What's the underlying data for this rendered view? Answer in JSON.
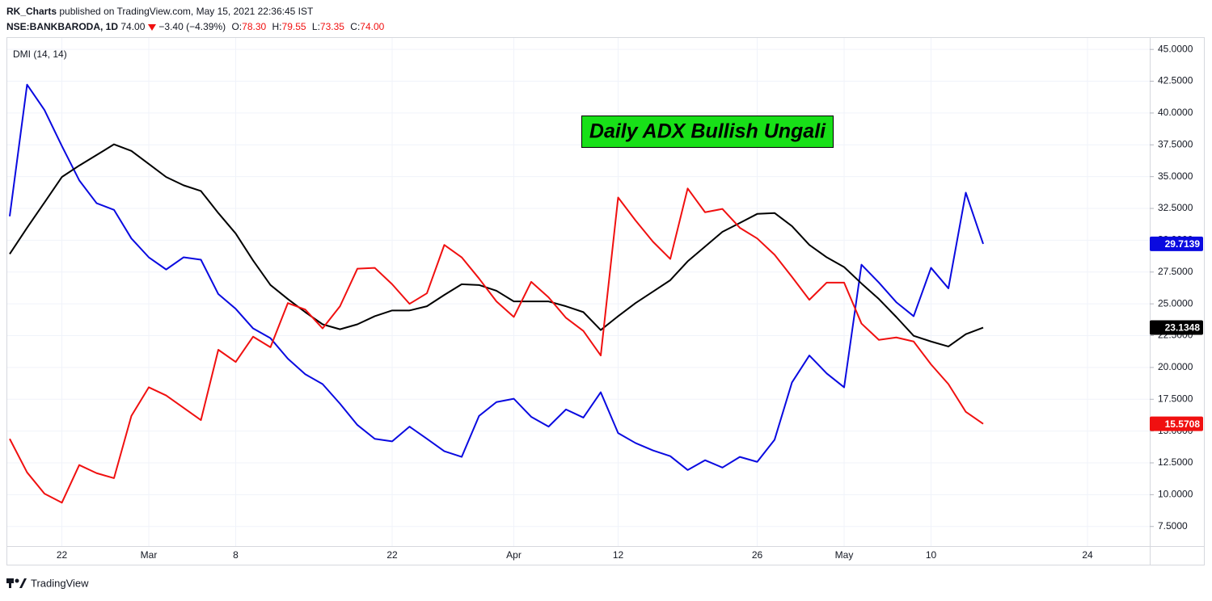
{
  "header": {
    "author": "RK_Charts",
    "published": "published on TradingView.com, May 15, 2021 22:36:45 IST",
    "symbol": "NSE:BANKBARODA, 1D",
    "last": "74.00",
    "change": "−3.40 (−4.39%)",
    "ohlc": [
      {
        "label": "O:",
        "value": "78.30"
      },
      {
        "label": "H:",
        "value": "79.55"
      },
      {
        "label": "L:",
        "value": "73.35"
      },
      {
        "label": "C:",
        "value": "74.00"
      }
    ]
  },
  "footer": {
    "brand": "TradingView"
  },
  "chart_data": {
    "type": "line",
    "legend": "DMI (14, 14)",
    "annotation": "Daily ADX Bullish Ungali",
    "grid": true,
    "categories": [
      null,
      null,
      null,
      "22",
      null,
      null,
      null,
      null,
      "Mar",
      null,
      null,
      null,
      null,
      "8",
      null,
      null,
      null,
      null,
      null,
      null,
      null,
      null,
      "22",
      null,
      null,
      null,
      null,
      null,
      null,
      "Apr",
      null,
      null,
      null,
      null,
      null,
      "12",
      null,
      null,
      null,
      null,
      null,
      null,
      null,
      "26",
      null,
      null,
      null,
      null,
      "May",
      null,
      null,
      null,
      null,
      "10",
      null,
      null,
      null,
      null,
      null,
      null,
      null,
      null,
      "24",
      null,
      null,
      null
    ],
    "ylim": [
      5.96,
      45.9
    ],
    "yticks": [
      {
        "value": 7.5,
        "label": "7.5000"
      },
      {
        "value": 10,
        "label": "10.0000"
      },
      {
        "value": 12.5,
        "label": "12.5000"
      },
      {
        "value": 15,
        "label": "15.0000"
      },
      {
        "value": 17.5,
        "label": "17.5000"
      },
      {
        "value": 20,
        "label": "20.0000"
      },
      {
        "value": 22.5,
        "label": "22.5000"
      },
      {
        "value": 25,
        "label": "25.0000"
      },
      {
        "value": 27.5,
        "label": "27.5000"
      },
      {
        "value": 30,
        "label": "30.0000"
      },
      {
        "value": 32.5,
        "label": "32.5000"
      },
      {
        "value": 35,
        "label": "35.0000"
      },
      {
        "value": 37.5,
        "label": "37.5000"
      },
      {
        "value": 40,
        "label": "40.0000"
      },
      {
        "value": 42.5,
        "label": "42.5000"
      },
      {
        "value": 45,
        "label": "45.0000"
      }
    ],
    "series": [
      {
        "color": "#0a0ae0",
        "values": [
          31.88,
          42.23,
          40.24,
          37.41,
          34.71,
          32.91,
          32.39,
          30.14,
          28.66,
          27.7,
          28.66,
          28.47,
          25.77,
          24.61,
          23.07,
          22.3,
          20.69,
          19.47,
          18.69,
          17.15,
          15.48,
          14.39,
          14.19,
          15.35,
          14.39,
          13.42,
          12.97,
          16.19,
          17.28,
          17.54,
          16.12,
          15.35,
          16.7,
          16.06,
          18.05,
          14.84,
          14.06,
          13.48,
          13.03,
          11.94,
          12.71,
          12.13,
          12.97,
          12.58,
          14.32,
          18.82,
          20.94,
          19.53,
          18.44,
          28.08,
          26.67,
          25.13,
          24.03,
          27.83,
          26.22,
          33.74,
          29.7139,
          null,
          null,
          null,
          null,
          null,
          null,
          null,
          null,
          null
        ]
      },
      {
        "color": "#000000",
        "values": [
          28.92,
          30.98,
          32.97,
          34.97,
          35.87,
          36.7,
          37.54,
          37.02,
          36.0,
          34.97,
          34.32,
          33.87,
          32.14,
          30.53,
          28.41,
          26.48,
          25.38,
          24.35,
          23.39,
          23.0,
          23.39,
          24.03,
          24.48,
          24.48,
          24.81,
          25.7,
          26.54,
          26.48,
          26.03,
          25.19,
          25.19,
          25.19,
          24.81,
          24.35,
          22.94,
          24.03,
          25.06,
          25.96,
          26.86,
          28.34,
          29.5,
          30.66,
          31.36,
          32.07,
          32.14,
          31.11,
          29.63,
          28.66,
          27.89,
          26.6,
          25.38,
          23.97,
          22.49,
          22.04,
          21.65,
          22.62,
          23.1348,
          null,
          null,
          null,
          null,
          null,
          null,
          null,
          null,
          null
        ]
      },
      {
        "color": "#f01010",
        "values": [
          14.39,
          11.75,
          10.08,
          9.37,
          12.33,
          11.69,
          11.3,
          16.19,
          18.44,
          17.8,
          16.83,
          15.86,
          21.39,
          20.43,
          22.42,
          21.59,
          25.06,
          24.55,
          23.07,
          24.81,
          27.76,
          27.83,
          26.54,
          25.0,
          25.83,
          29.63,
          28.66,
          26.99,
          25.19,
          23.97,
          26.73,
          25.51,
          23.9,
          22.87,
          20.94,
          33.36,
          31.56,
          29.89,
          28.53,
          34.07,
          32.2,
          32.46,
          30.98,
          30.14,
          28.86,
          27.12,
          25.32,
          26.67,
          26.67,
          23.45,
          22.17,
          22.36,
          22.04,
          20.24,
          18.69,
          16.51,
          15.5708,
          null,
          null,
          null,
          null,
          null,
          null,
          null,
          null,
          null
        ]
      }
    ]
  }
}
